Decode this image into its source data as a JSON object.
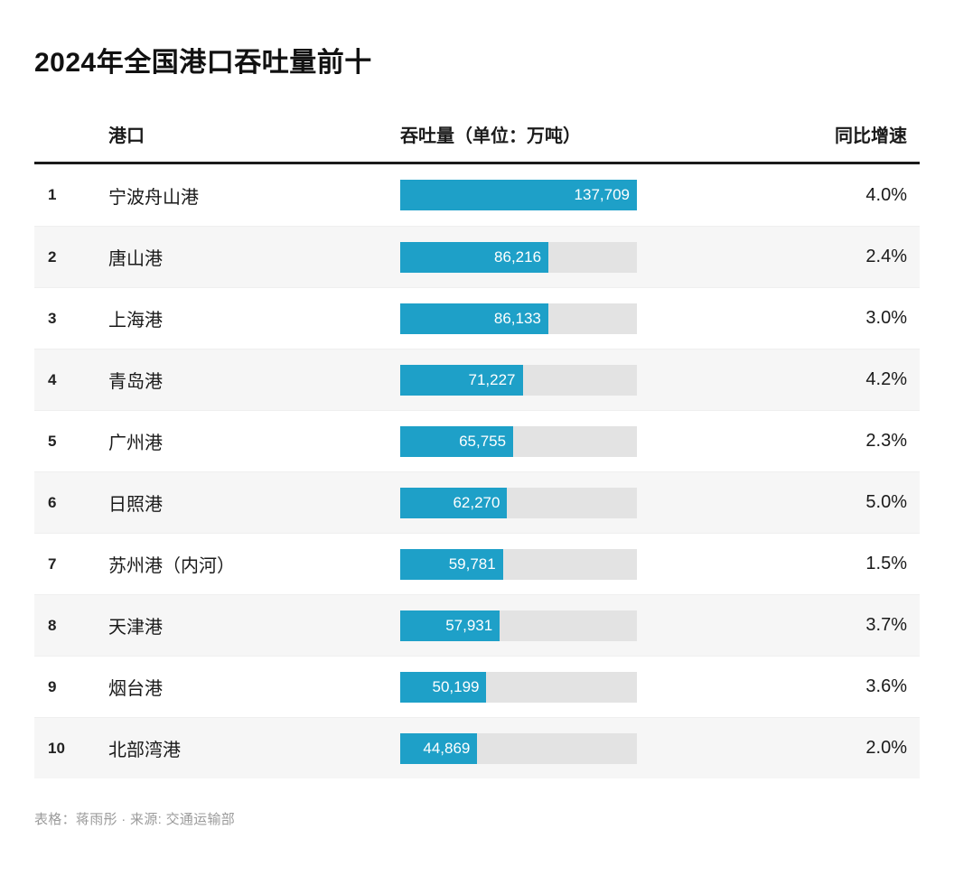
{
  "title": "2024年全国港口吞吐量前十",
  "colors": {
    "bar": "#1EA0C8",
    "track": "#E3E3E3",
    "alt_row": "#F6F6F6",
    "header_rule": "#1A1A1A",
    "footer_text": "#9B9B9B"
  },
  "columns": {
    "port": "港口",
    "throughput": "吞吐量（单位：万吨）",
    "growth": "同比增速"
  },
  "chart_data": {
    "type": "bar",
    "orientation": "horizontal",
    "title": "2024年全国港口吞吐量前十",
    "categories": [
      "宁波舟山港",
      "唐山港",
      "上海港",
      "青岛港",
      "广州港",
      "日照港",
      "苏州港（内河）",
      "天津港",
      "烟台港",
      "北部湾港"
    ],
    "series": [
      {
        "name": "吞吐量（单位：万吨）",
        "values": [
          137709,
          86216,
          86133,
          71227,
          65755,
          62270,
          59781,
          57931,
          50199,
          44869
        ]
      },
      {
        "name": "同比增速(%)",
        "values": [
          4.0,
          2.4,
          3.0,
          4.2,
          2.3,
          5.0,
          1.5,
          3.7,
          3.6,
          2.0
        ]
      }
    ],
    "xlabel": "吞吐量（单位：万吨）",
    "xlim": [
      0,
      137709
    ],
    "grid": false,
    "legend": "none",
    "value_labels": "inside-end"
  },
  "rows": [
    {
      "rank": "1",
      "port": "宁波舟山港",
      "value": 137709,
      "value_label": "137,709",
      "growth": "4.0%"
    },
    {
      "rank": "2",
      "port": "唐山港",
      "value": 86216,
      "value_label": "86,216",
      "growth": "2.4%"
    },
    {
      "rank": "3",
      "port": "上海港",
      "value": 86133,
      "value_label": "86,133",
      "growth": "3.0%"
    },
    {
      "rank": "4",
      "port": "青岛港",
      "value": 71227,
      "value_label": "71,227",
      "growth": "4.2%"
    },
    {
      "rank": "5",
      "port": "广州港",
      "value": 65755,
      "value_label": "65,755",
      "growth": "2.3%"
    },
    {
      "rank": "6",
      "port": "日照港",
      "value": 62270,
      "value_label": "62,270",
      "growth": "5.0%"
    },
    {
      "rank": "7",
      "port": "苏州港（内河）",
      "value": 59781,
      "value_label": "59,781",
      "growth": "1.5%"
    },
    {
      "rank": "8",
      "port": "天津港",
      "value": 57931,
      "value_label": "57,931",
      "growth": "3.7%"
    },
    {
      "rank": "9",
      "port": "烟台港",
      "value": 50199,
      "value_label": "50,199",
      "growth": "3.6%"
    },
    {
      "rank": "10",
      "port": "北部湾港",
      "value": 44869,
      "value_label": "44,869",
      "growth": "2.0%"
    }
  ],
  "footer": "表格：蒋雨彤 · 来源: 交通运输部"
}
